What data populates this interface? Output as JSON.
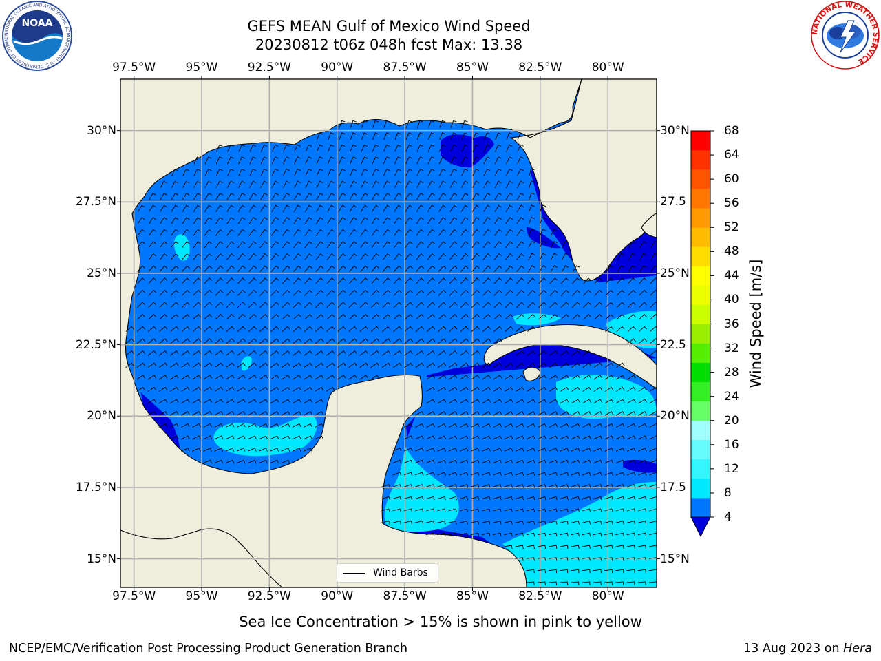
{
  "title": {
    "line1": "GEFS MEAN Gulf of Mexico Wind Speed",
    "line2": "20230812 t06z 048h fcst   Max: 13.38"
  },
  "colorbar": {
    "label": "Wind Speed [m/s]",
    "ticks": [
      "4",
      "8",
      "12",
      "16",
      "20",
      "24",
      "28",
      "32",
      "36",
      "40",
      "44",
      "48",
      "52",
      "56",
      "60",
      "64",
      "68"
    ],
    "colors": [
      "#0077ff",
      "#00e8ff",
      "#33f6ff",
      "#66fbff",
      "#a0ffff",
      "#66ff66",
      "#33ee22",
      "#00dd00",
      "#55ee00",
      "#99ee00",
      "#ccff00",
      "#eeff00",
      "#ffff00",
      "#ffdd00",
      "#ffbb00",
      "#ff9900",
      "#ff7700",
      "#ff5500",
      "#ff3300",
      "#ff0000"
    ],
    "under_color": "#0000dd"
  },
  "map": {
    "lon_labels": [
      "97.5°W",
      "95°W",
      "92.5°W",
      "90°W",
      "87.5°W",
      "85°W",
      "82.5°W",
      "80°W"
    ],
    "lon_values": [
      -97.5,
      -95,
      -92.5,
      -90,
      -87.5,
      -85,
      -82.5,
      -80
    ],
    "lat_labels": [
      "30°N",
      "27.5°N",
      "25°N",
      "22.5°N",
      "20°N",
      "17.5°N",
      "15°N"
    ],
    "lat_labels_right": [
      "30°N",
      "27.5",
      "25°N",
      "22.5",
      "20°N",
      "17.5",
      "15°N"
    ],
    "lat_values": [
      30,
      27.5,
      25,
      22.5,
      20,
      17.5,
      15
    ],
    "extent": {
      "lon_min": -98,
      "lon_max": -78.2,
      "lat_min": 14.0,
      "lat_max": 31.8
    },
    "land_color": "#efeedc",
    "grid_color": "#b0b0b0",
    "barb_color": "#000000"
  },
  "legend": {
    "label": "Wind Barbs"
  },
  "note": "Sea Ice Concentration > 15% is shown in pink to yellow",
  "footer": {
    "left": "NCEP/EMC/Verification Post Processing Product Generation Branch",
    "right_prefix": "13 Aug 2023 on ",
    "right_italic": "Hera"
  },
  "logos": {
    "noaa_text": "NOAA",
    "noaa_ring": "NATIONAL OCEANIC AND ATMOSPHERIC ADMINISTRATION · U.S. DEPARTMENT OF COMMERCE",
    "nws_ring": "NATIONAL WEATHER SERVICE"
  }
}
